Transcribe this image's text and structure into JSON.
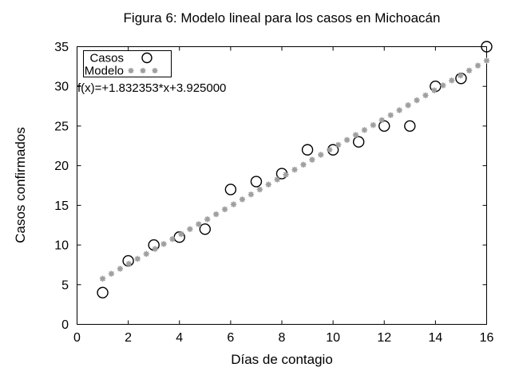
{
  "chart_data": {
    "type": "scatter",
    "title": "Figura 6: Modelo lineal para los casos en Michoacán",
    "xlabel": "Días de contagio",
    "ylabel": "Casos confirmados",
    "xlim": [
      0,
      16
    ],
    "ylim": [
      0,
      35
    ],
    "xticks": [
      0,
      2,
      4,
      6,
      8,
      10,
      12,
      14,
      16
    ],
    "yticks": [
      0,
      5,
      10,
      15,
      20,
      25,
      30,
      35
    ],
    "grid": false,
    "annotation": "f(x)=+1.832353*x+3.925000",
    "legend": {
      "position": "top-left",
      "border": true
    },
    "series": [
      {
        "name": "Casos",
        "kind": "points",
        "marker": "open-circle",
        "color": "#000000",
        "x": [
          1,
          2,
          3,
          4,
          5,
          6,
          7,
          8,
          9,
          10,
          11,
          12,
          13,
          14,
          15,
          16
        ],
        "y": [
          4,
          8,
          10,
          11,
          12,
          17,
          18,
          19,
          22,
          22,
          23,
          25,
          25,
          30,
          31,
          35
        ]
      },
      {
        "name": "Modelo",
        "kind": "function-points",
        "marker": "asterisk",
        "color": "#9f9f9f",
        "slope": 1.832353,
        "intercept": 3.925,
        "x_start": 1,
        "x_end": 16,
        "samples": 45
      }
    ],
    "colors": {
      "foreground": "#000000",
      "model_gray": "#9f9f9f",
      "background": "#ffffff"
    }
  }
}
